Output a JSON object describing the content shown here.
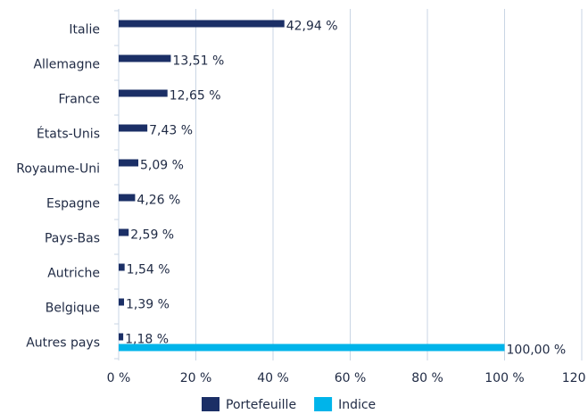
{
  "chart_data": {
    "type": "hbar",
    "categories": [
      "Italie",
      "Allemagne",
      "France",
      "États-Unis",
      "Royaume-Uni",
      "Espagne",
      "Pays-Bas",
      "Autriche",
      "Belgique",
      "Autres pays"
    ],
    "series": [
      {
        "name": "Portefeuille",
        "color": "#1b2f66",
        "values": [
          42.94,
          13.51,
          12.65,
          7.43,
          5.09,
          4.26,
          2.59,
          1.54,
          1.39,
          1.18
        ],
        "value_labels": [
          "42,94 %",
          "13,51 %",
          "12,65 %",
          "7,43 %",
          "5,09 %",
          "4,26 %",
          "2,59 %",
          "1,54 %",
          "1,39 %",
          "1,18 %"
        ]
      },
      {
        "name": "Indice",
        "color": "#00b4ea",
        "values": [
          null,
          null,
          null,
          null,
          null,
          null,
          null,
          null,
          null,
          100
        ],
        "value_labels": [
          null,
          null,
          null,
          null,
          null,
          null,
          null,
          null,
          null,
          "100,00 %"
        ]
      }
    ],
    "xlim": [
      0,
      120
    ],
    "xticks": [
      {
        "value": 0,
        "label": "0 %"
      },
      {
        "value": 20,
        "label": "20 %"
      },
      {
        "value": 40,
        "label": "40 %"
      },
      {
        "value": 60,
        "label": "60 %"
      },
      {
        "value": 80,
        "label": "80 %"
      },
      {
        "value": 100,
        "label": "100 %"
      },
      {
        "value": 120,
        "label": "120 %"
      }
    ],
    "grid": true,
    "legend": "bottom"
  }
}
